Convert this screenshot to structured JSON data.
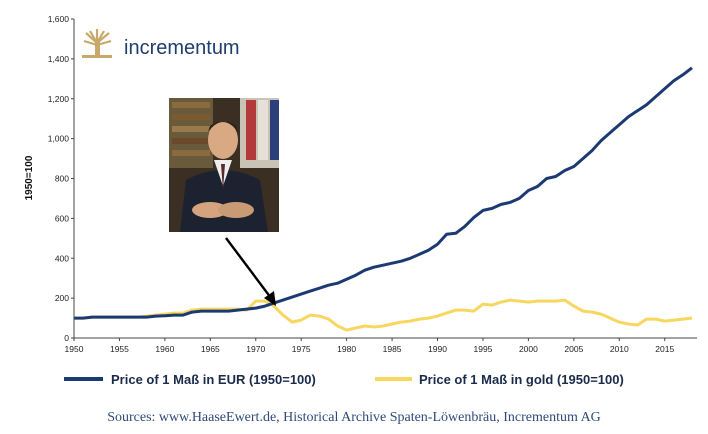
{
  "logo": {
    "text": "incrementum"
  },
  "source_note": "Sources: www.HaaseEwert.de, Historical Archive Spaten-Löwenbräu, Incrementum AG",
  "colors": {
    "eur": "#1c3a72",
    "gold": "#f7d760",
    "axis": "#444444",
    "logo": "#1f3d6e",
    "logo_icon": "#c8a96a"
  },
  "photo": {
    "description_icon": "portrait-photo"
  },
  "chart_data": {
    "type": "line",
    "title": "",
    "xlabel": "",
    "ylabel": "1950=100",
    "xlim": [
      1950,
      2018
    ],
    "ylim": [
      0,
      1600
    ],
    "x_ticks": [
      1950,
      1955,
      1960,
      1965,
      1970,
      1975,
      1980,
      1985,
      1990,
      1995,
      2000,
      2005,
      2010,
      2015
    ],
    "y_ticks": [
      0,
      200,
      400,
      600,
      800,
      1000,
      1200,
      1400,
      1600
    ],
    "y_tick_labels": [
      "0",
      "200",
      "400",
      "600",
      "800",
      "1,000",
      "1,200",
      "1,400",
      "1,600"
    ],
    "grid": false,
    "legend_position": "bottom",
    "series": [
      {
        "name": "Price of 1 Maß in EUR (1950=100)",
        "color": "#1c3a72",
        "x": [
          1950,
          1951,
          1952,
          1953,
          1954,
          1955,
          1956,
          1957,
          1958,
          1959,
          1960,
          1961,
          1962,
          1963,
          1964,
          1965,
          1966,
          1967,
          1968,
          1969,
          1970,
          1971,
          1972,
          1973,
          1974,
          1975,
          1976,
          1977,
          1978,
          1979,
          1980,
          1981,
          1982,
          1983,
          1984,
          1985,
          1986,
          1987,
          1988,
          1989,
          1990,
          1991,
          1992,
          1993,
          1994,
          1995,
          1996,
          1997,
          1998,
          1999,
          2000,
          2001,
          2002,
          2003,
          2004,
          2005,
          2006,
          2007,
          2008,
          2009,
          2010,
          2011,
          2012,
          2013,
          2014,
          2015,
          2016,
          2017,
          2018
        ],
        "values": [
          100,
          100,
          105,
          105,
          105,
          105,
          105,
          105,
          105,
          110,
          112,
          115,
          115,
          130,
          135,
          135,
          135,
          135,
          140,
          145,
          150,
          160,
          175,
          190,
          205,
          220,
          235,
          250,
          265,
          275,
          295,
          315,
          340,
          355,
          365,
          375,
          385,
          400,
          420,
          440,
          470,
          520,
          525,
          560,
          605,
          640,
          650,
          670,
          680,
          700,
          740,
          760,
          800,
          810,
          840,
          860,
          900,
          940,
          990,
          1030,
          1070,
          1110,
          1140,
          1170,
          1210,
          1250,
          1290,
          1320,
          1355
        ]
      },
      {
        "name": "Price of 1 Maß in gold (1950=100)",
        "color": "#f7d760",
        "x": [
          1950,
          1951,
          1952,
          1953,
          1954,
          1955,
          1956,
          1957,
          1958,
          1959,
          1960,
          1961,
          1962,
          1963,
          1964,
          1965,
          1966,
          1967,
          1968,
          1969,
          1970,
          1971,
          1972,
          1973,
          1974,
          1975,
          1976,
          1977,
          1978,
          1979,
          1980,
          1981,
          1982,
          1983,
          1984,
          1985,
          1986,
          1987,
          1988,
          1989,
          1990,
          1991,
          1992,
          1993,
          1994,
          1995,
          1996,
          1997,
          1998,
          1999,
          2000,
          2001,
          2002,
          2003,
          2004,
          2005,
          2006,
          2007,
          2008,
          2009,
          2010,
          2011,
          2012,
          2013,
          2014,
          2015,
          2016,
          2017,
          2018
        ],
        "values": [
          100,
          100,
          105,
          105,
          105,
          105,
          105,
          105,
          110,
          115,
          120,
          125,
          125,
          140,
          145,
          145,
          145,
          145,
          145,
          140,
          185,
          185,
          160,
          115,
          80,
          90,
          115,
          110,
          95,
          60,
          40,
          50,
          60,
          55,
          60,
          70,
          80,
          85,
          95,
          100,
          110,
          125,
          140,
          140,
          135,
          170,
          165,
          180,
          190,
          185,
          180,
          185,
          185,
          185,
          190,
          160,
          135,
          130,
          120,
          100,
          80,
          70,
          65,
          95,
          95,
          85,
          90,
          95,
          100
        ]
      }
    ],
    "annotations": [
      {
        "type": "arrow",
        "from_description": "photo",
        "to_x": 1971,
        "to_y": 180
      }
    ]
  }
}
